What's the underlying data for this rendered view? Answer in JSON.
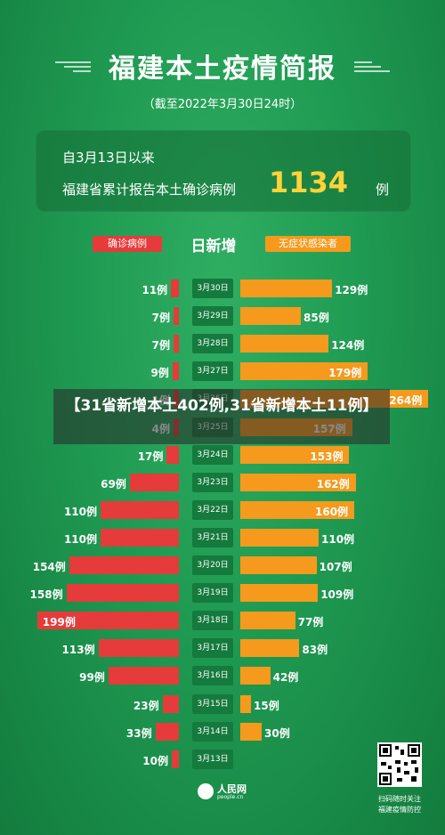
{
  "header": {
    "title": "福建本土疫情简报",
    "subtitle": "（截至2022年3月30日24时）"
  },
  "summary": {
    "line1": "自3月13日以来",
    "line2": "福建省累计报告本土确诊病例",
    "total": "1134",
    "unit": "例"
  },
  "legend": {
    "confirmed": "确诊病例",
    "daily": "日新增",
    "asymptomatic": "无症状感染者"
  },
  "banner": {
    "text": "【31省新增本土402例,31省新增本土11例】"
  },
  "footer": {
    "logo_text": "人民网",
    "logo_sub": "people.cn",
    "qr_caption_1": "扫码随时关注",
    "qr_caption_2": "福建疫情防控"
  },
  "colors": {
    "confirmed": "#e53b3b",
    "asymptomatic": "#f59a1c",
    "highlight": "#ffd23a"
  },
  "chart_data": {
    "type": "bar",
    "categories": [
      "3月30日",
      "3月29日",
      "3月28日",
      "3月27日",
      "3月26日",
      "3月25日",
      "3月24日",
      "3月23日",
      "3月22日",
      "3月21日",
      "3月20日",
      "3月19日",
      "3月18日",
      "3月17日",
      "3月16日",
      "3月15日",
      "3月14日",
      "3月13日"
    ],
    "series": [
      {
        "name": "确诊病例",
        "values": [
          11,
          7,
          7,
          9,
          1,
          4,
          17,
          69,
          110,
          110,
          154,
          158,
          199,
          113,
          99,
          23,
          33,
          10
        ],
        "labels": [
          "11例",
          "7例",
          "7例",
          "9例",
          "1例",
          "4例",
          "17例",
          "69例",
          "110例",
          "110例",
          "154例",
          "158例",
          "199例",
          "113例",
          "99例",
          "23例",
          "33例",
          "10例"
        ]
      },
      {
        "name": "无症状感染者",
        "values": [
          129,
          85,
          124,
          179,
          264,
          157,
          153,
          162,
          160,
          110,
          107,
          109,
          77,
          83,
          42,
          15,
          30,
          0
        ],
        "labels": [
          "129例",
          "85例",
          "124例",
          "179例",
          "264例",
          "157例",
          "153例",
          "162例",
          "160例",
          "110例",
          "107例",
          "109例",
          "77例",
          "83例",
          "42例",
          "15例",
          "30例",
          ""
        ]
      }
    ]
  }
}
